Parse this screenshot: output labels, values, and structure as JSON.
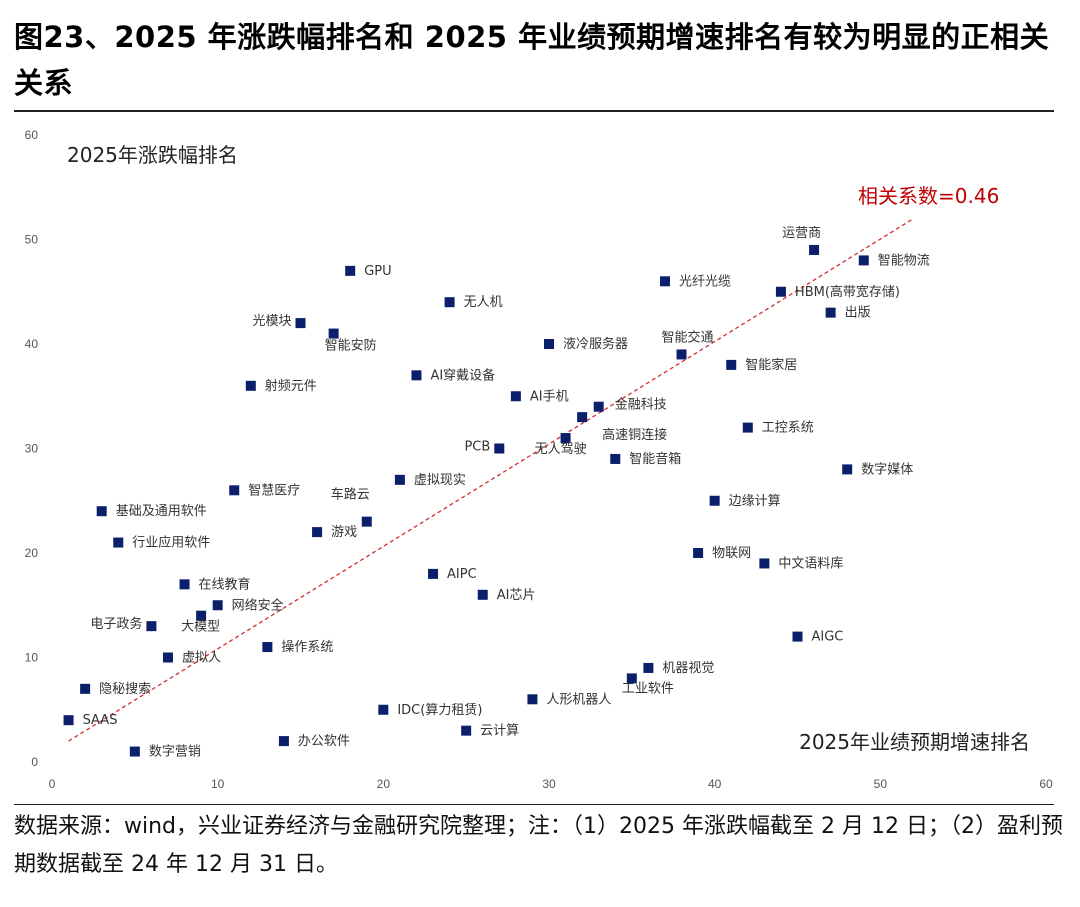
{
  "header": {
    "title": "图23、2025 年涨跌幅排名和 2025 年业绩预期增速排名有较为明显的正相关关系"
  },
  "footer": {
    "source": "数据来源：wind，兴业证券经济与金融研究院整理；注：（1）2025 年涨跌幅截至 2 月 12 日；（2）盈利预期数据截至 24 年 12 月 31 日。"
  },
  "chart_data": {
    "type": "scatter",
    "xlabel": "2025年业绩预期增速排名",
    "ylabel": "2025年涨跌幅排名",
    "xlim": [
      0,
      60
    ],
    "ylim": [
      0,
      60
    ],
    "x_ticks": [
      "0",
      "10",
      "20",
      "30",
      "40",
      "50",
      "60"
    ],
    "y_ticks": [
      "0",
      "10",
      "20",
      "30",
      "40",
      "50",
      "60"
    ],
    "grid": false,
    "marker_color": "#0b1f6b",
    "trendline": {
      "label": "相关系数=0.46",
      "color": "#d32f2f",
      "style": "dashed",
      "from": [
        1,
        2
      ],
      "to": [
        52,
        52
      ]
    },
    "points": [
      {
        "label": "GPU",
        "x": 18,
        "y": 47
      },
      {
        "label": "无人机",
        "x": 24,
        "y": 44
      },
      {
        "label": "光模块",
        "x": 15,
        "y": 42
      },
      {
        "label": "智能安防",
        "x": 17,
        "y": 41
      },
      {
        "label": "液冷服务器",
        "x": 30,
        "y": 40
      },
      {
        "label": "AI穿戴设备",
        "x": 22,
        "y": 37
      },
      {
        "label": "射频元件",
        "x": 12,
        "y": 36
      },
      {
        "label": "AI手机",
        "x": 28,
        "y": 35
      },
      {
        "label": "金融科技",
        "x": 33,
        "y": 34
      },
      {
        "label": "高速铜连接",
        "x": 32,
        "y": 33
      },
      {
        "label": "无人驾驶",
        "x": 31,
        "y": 31
      },
      {
        "label": "PCB",
        "x": 27,
        "y": 30
      },
      {
        "label": "智能音箱",
        "x": 34,
        "y": 29
      },
      {
        "label": "虚拟现实",
        "x": 21,
        "y": 27
      },
      {
        "label": "智慧医疗",
        "x": 11,
        "y": 26
      },
      {
        "label": "基础及通用软件",
        "x": 3,
        "y": 24
      },
      {
        "label": "车路云",
        "x": 19,
        "y": 23
      },
      {
        "label": "游戏",
        "x": 16,
        "y": 22
      },
      {
        "label": "行业应用软件",
        "x": 4,
        "y": 21
      },
      {
        "label": "AIPC",
        "x": 23,
        "y": 18
      },
      {
        "label": "在线教育",
        "x": 8,
        "y": 17
      },
      {
        "label": "AI芯片",
        "x": 26,
        "y": 16
      },
      {
        "label": "网络安全",
        "x": 10,
        "y": 15
      },
      {
        "label": "大模型",
        "x": 9,
        "y": 14
      },
      {
        "label": "电子政务",
        "x": 6,
        "y": 13
      },
      {
        "label": "操作系统",
        "x": 13,
        "y": 11
      },
      {
        "label": "虚拟人",
        "x": 7,
        "y": 10
      },
      {
        "label": "隐秘搜索",
        "x": 2,
        "y": 7
      },
      {
        "label": "SAAS",
        "x": 1,
        "y": 4
      },
      {
        "label": "数字营销",
        "x": 5,
        "y": 1
      },
      {
        "label": "办公软件",
        "x": 14,
        "y": 2
      },
      {
        "label": "IDC(算力租赁)",
        "x": 20,
        "y": 5
      },
      {
        "label": "云计算",
        "x": 25,
        "y": 3
      },
      {
        "label": "人形机器人",
        "x": 29,
        "y": 6
      },
      {
        "label": "工业软件",
        "x": 35,
        "y": 8
      },
      {
        "label": "机器视觉",
        "x": 36,
        "y": 9
      },
      {
        "label": "运营商",
        "x": 46,
        "y": 49
      },
      {
        "label": "智能物流",
        "x": 49,
        "y": 48
      },
      {
        "label": "光纤光缆",
        "x": 37,
        "y": 46
      },
      {
        "label": "HBM(高带宽存储)",
        "x": 44,
        "y": 45
      },
      {
        "label": "出版",
        "x": 47,
        "y": 43
      },
      {
        "label": "智能交通",
        "x": 38,
        "y": 39
      },
      {
        "label": "智能家居",
        "x": 41,
        "y": 38
      },
      {
        "label": "工控系统",
        "x": 42,
        "y": 32
      },
      {
        "label": "数字媒体",
        "x": 48,
        "y": 28
      },
      {
        "label": "边缘计算",
        "x": 40,
        "y": 25
      },
      {
        "label": "物联网",
        "x": 39,
        "y": 20
      },
      {
        "label": "中文语料库",
        "x": 43,
        "y": 19
      },
      {
        "label": "AIGC",
        "x": 45,
        "y": 12
      }
    ]
  }
}
